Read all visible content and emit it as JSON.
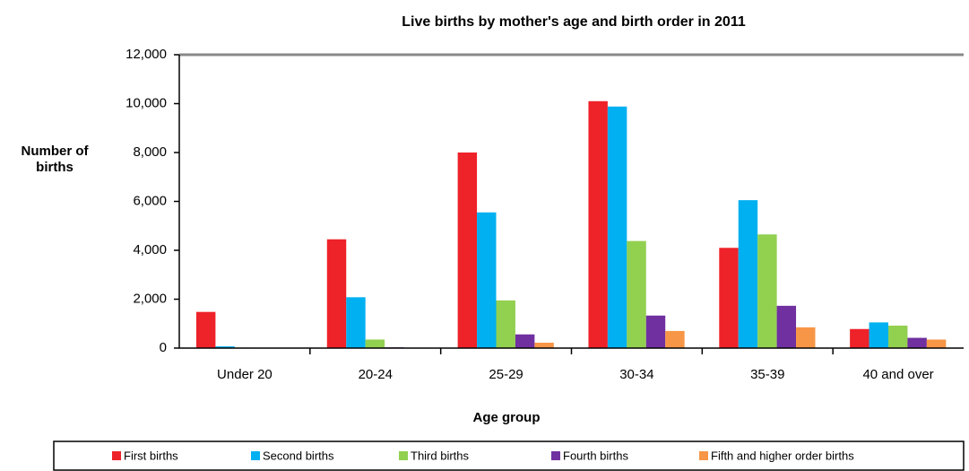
{
  "chart_data": {
    "type": "bar",
    "title": "Live births by mother's age and birth order in 2011",
    "x_label": "Age group",
    "y_label": "Number of births",
    "categories": [
      "Under 20",
      "20-24",
      "25-29",
      "30-34",
      "35-39",
      "40 and over"
    ],
    "series": [
      {
        "name": "First births",
        "color": "#ee2229",
        "values": [
          1480,
          4450,
          8000,
          10100,
          4100,
          780
        ]
      },
      {
        "name": "Second births",
        "color": "#00b0f0",
        "values": [
          70,
          2080,
          5550,
          9880,
          6050,
          1050
        ]
      },
      {
        "name": "Third births",
        "color": "#92d050",
        "values": [
          20,
          350,
          1950,
          4380,
          4650,
          920
        ]
      },
      {
        "name": "Fourth births",
        "color": "#7030a0",
        "values": [
          10,
          30,
          560,
          1330,
          1730,
          420
        ]
      },
      {
        "name": "Fifth and higher order births",
        "color": "#f79646",
        "values": [
          0,
          10,
          220,
          700,
          850,
          350
        ]
      }
    ],
    "ylim": [
      0,
      12000
    ],
    "yticks": [
      {
        "value": 0,
        "label": "0"
      },
      {
        "value": 2000,
        "label": "2,000"
      },
      {
        "value": 4000,
        "label": "4,000"
      },
      {
        "value": 6000,
        "label": "6,000"
      },
      {
        "value": 8000,
        "label": "8,000"
      },
      {
        "value": 10000,
        "label": "10,000"
      },
      {
        "value": 12000,
        "label": "12,000"
      }
    ],
    "grid": false,
    "legend": "bottom"
  }
}
